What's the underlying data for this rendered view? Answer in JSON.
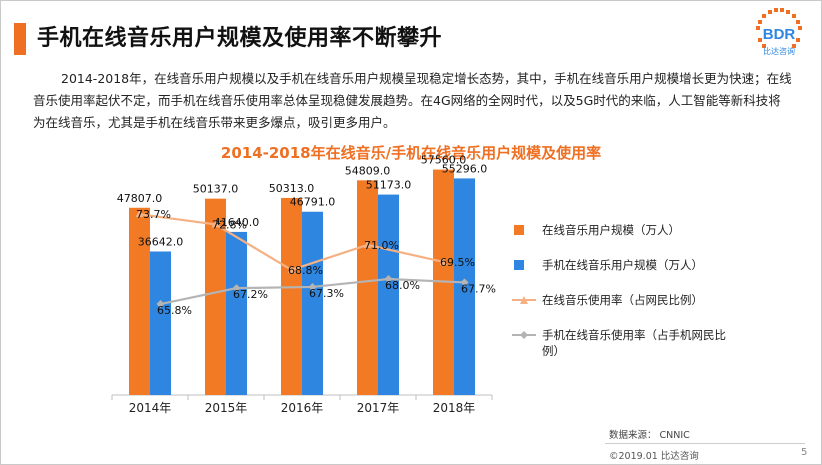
{
  "page": {
    "title": "手机在线音乐用户规模及使用率不断攀升",
    "intro": "2014-2018年，在线音乐用户规模以及手机在线音乐用户规模呈现稳定增长态势，其中，手机在线音乐用户规模增长更为快速；在线音乐使用率起伏不定，而手机在线音乐使用率总体呈现稳健发展趋势。在4G网络的全网时代，以及5G时代的来临，人工智能等新科技将为在线音乐，尤其是手机在线音乐带来更多爆点，吸引更多用户。",
    "logo_text": "BDR",
    "logo_subtext": "比达咨询",
    "source": "数据来源： CNNIC",
    "copyright": "©2019.01 比达咨询",
    "page_number": "5"
  },
  "colors": {
    "accent": "#ef6f23",
    "bar_orange": "#f27a24",
    "bar_blue": "#2e86e0",
    "line_orange": "#f5b183",
    "line_gray": "#b4b4b4"
  },
  "chart_data": {
    "type": "bar",
    "title": "2014-2018年在线音乐/手机在线音乐用户规模及使用率",
    "categories": [
      "2014年",
      "2015年",
      "2016年",
      "2017年",
      "2018年"
    ],
    "series": [
      {
        "name": "在线音乐用户规模（万人）",
        "kind": "bar",
        "color": "#f27a24",
        "values": [
          47807.0,
          50137.0,
          50313.0,
          54809.0,
          57560.0
        ],
        "labels": [
          "47807.0",
          "50137.0",
          "50313.0",
          "54809.0",
          "57560.0"
        ]
      },
      {
        "name": "手机在线音乐用户规模（万人）",
        "kind": "bar",
        "color": "#2e86e0",
        "values": [
          36642.0,
          41640.0,
          46791.0,
          51173.0,
          55296.0
        ],
        "labels": [
          "36642.0",
          "41640.0",
          "46791.0",
          "51173.0",
          "55296.0"
        ]
      },
      {
        "name": "在线音乐使用率（占网民比例）",
        "kind": "line",
        "color": "#f5b183",
        "values": [
          73.7,
          72.8,
          68.8,
          71.0,
          69.5
        ],
        "labels": [
          "73.7%",
          "72.8%",
          "68.8%",
          "71.0%",
          "69.5%"
        ]
      },
      {
        "name": "手机在线音乐使用率（占手机网民比例）",
        "kind": "line",
        "color": "#b4b4b4",
        "values": [
          65.8,
          67.2,
          67.3,
          68.0,
          67.7
        ],
        "labels": [
          "65.8%",
          "67.2%",
          "67.3%",
          "68.0%",
          "67.7%"
        ]
      }
    ],
    "legend": [
      {
        "text": "在线音乐用户规模（万人）"
      },
      {
        "text": "手机在线音乐用户规模（万人）"
      },
      {
        "text": "在线音乐使用率（占网民比例）"
      },
      {
        "text": "手机在线音乐使用率（占手机网民比例）"
      }
    ],
    "ylim_bars": [
      0,
      60000
    ],
    "ylim_lines": [
      60,
      76
    ],
    "legend_position": "right",
    "grid": false
  }
}
